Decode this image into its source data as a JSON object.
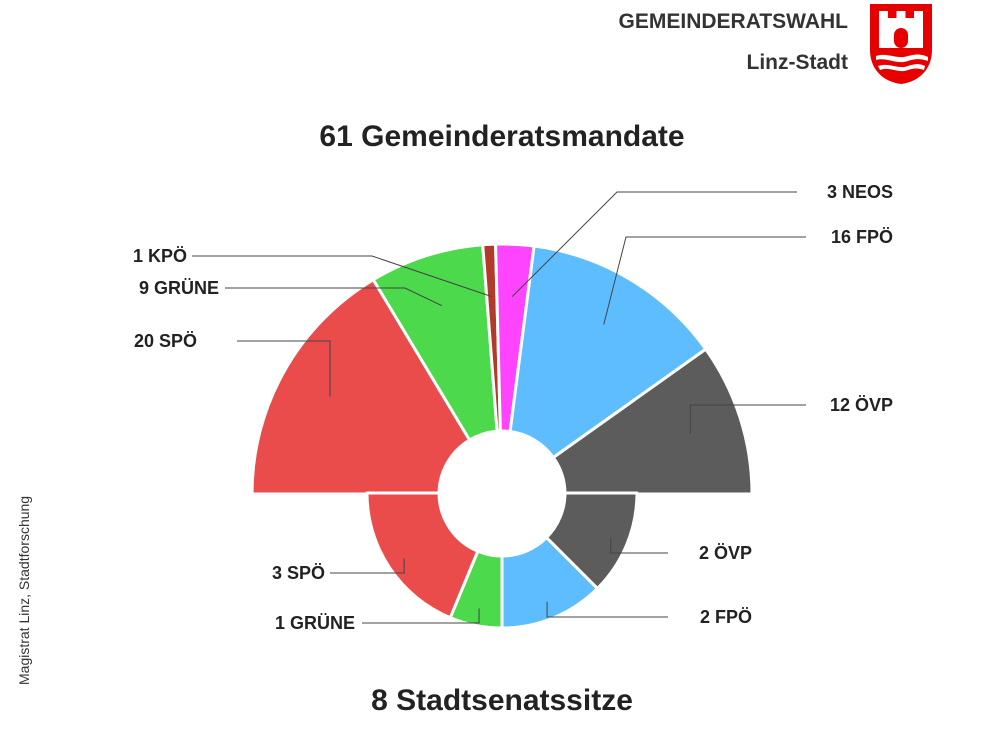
{
  "header": {
    "title": "GEMEINDERATSWAHL",
    "subtitle": "Linz-Stadt"
  },
  "side_credit": "Magistrat Linz, Stadtforschung",
  "colors": {
    "SPÖ": "#ea4c4c",
    "GRÜNE": "#4cd94c",
    "KPÖ": "#b23a2a",
    "NEOS": "#ff44ff",
    "FPÖ": "#5ebdff",
    "ÖVP": "#5c5c5c",
    "crest": "#e60000"
  },
  "chart_data": [
    {
      "type": "pie",
      "variant": "half-donut",
      "title": "61 Gemeinderatsmandate",
      "categories": [
        "SPÖ",
        "GRÜNE",
        "KPÖ",
        "NEOS",
        "FPÖ",
        "ÖVP"
      ],
      "values": [
        20,
        9,
        1,
        3,
        16,
        12
      ],
      "labels": [
        "20  SPÖ",
        "9  GRÜNE",
        "1  KPÖ",
        "3  NEOS",
        "16  FPÖ",
        "12  ÖVP"
      ]
    },
    {
      "type": "pie",
      "variant": "half-donut",
      "title": "8 Stadtsenatssitze",
      "categories": [
        "SPÖ",
        "GRÜNE",
        "FPÖ",
        "ÖVP"
      ],
      "values": [
        3,
        1,
        2,
        2
      ],
      "labels": [
        "3  SPÖ",
        "1  GRÜNE",
        "2  FPÖ",
        "2  ÖVP"
      ]
    }
  ]
}
